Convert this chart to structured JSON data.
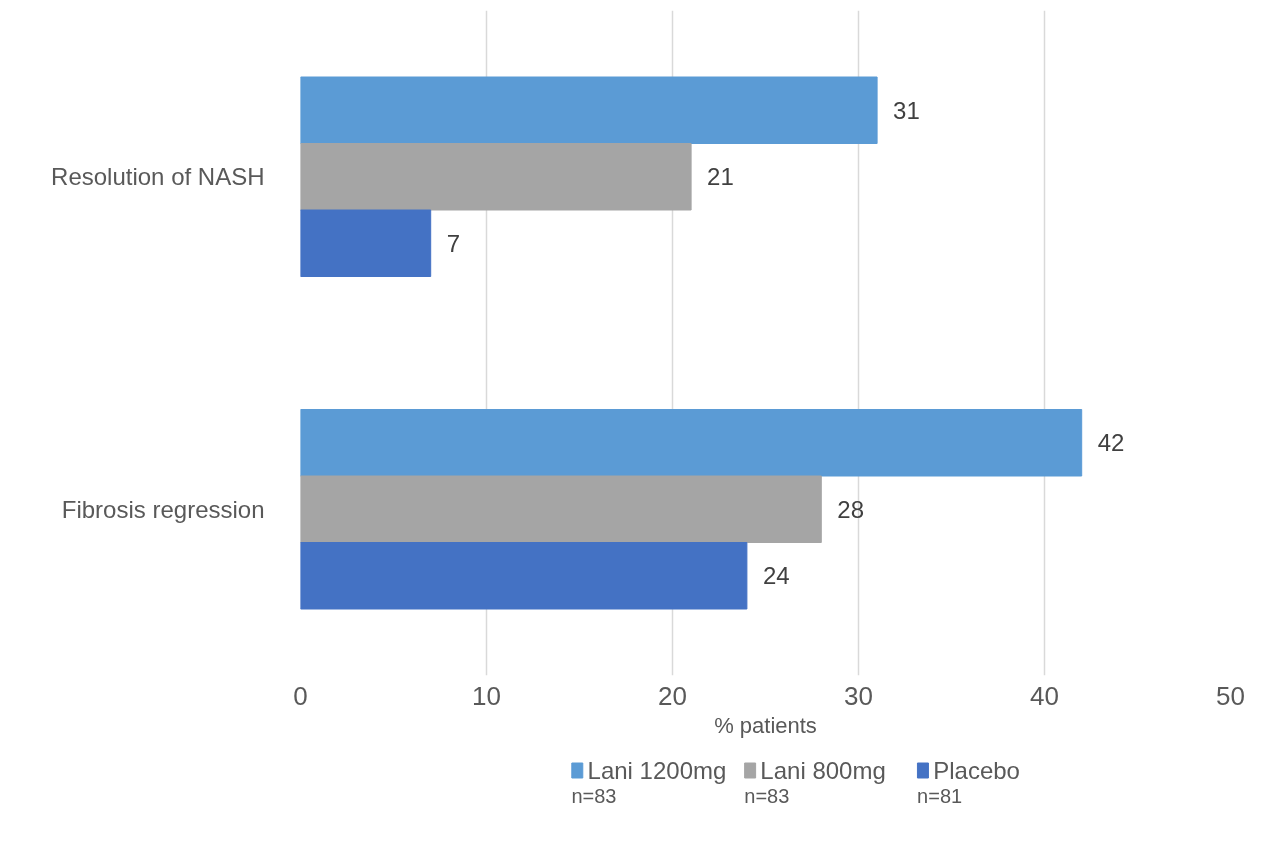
{
  "chart_data": {
    "type": "bar",
    "orientation": "horizontal",
    "xlabel": "% patients",
    "categories": [
      "Resolution of NASH",
      "Fibrosis regression"
    ],
    "series": [
      {
        "name": "Lani 1200mg",
        "color": "#5b9bd5",
        "values": [
          31,
          42
        ]
      },
      {
        "name": "Lani 800mg",
        "color": "#a5a5a5",
        "values": [
          21,
          28
        ]
      },
      {
        "name": "Placebo",
        "color": "#4472c4",
        "values": [
          7,
          24
        ]
      }
    ],
    "xlim": [
      0,
      50
    ],
    "xticks": [
      0,
      10,
      20,
      30,
      40,
      50
    ],
    "grid": "x",
    "data_labels": true,
    "legend": "bottom",
    "annotations": [
      "n=83",
      "n=83",
      "n=81"
    ]
  }
}
